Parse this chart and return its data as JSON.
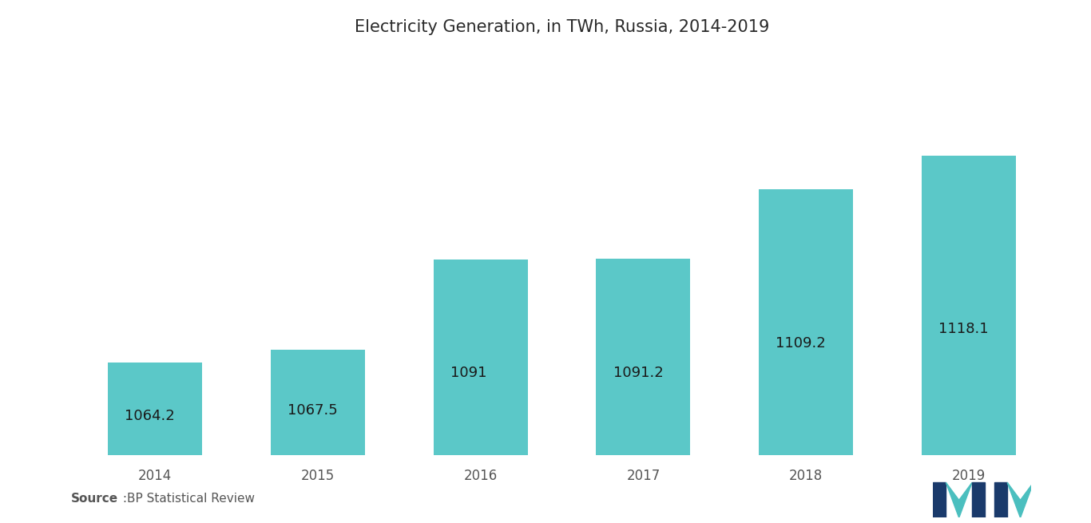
{
  "title": "Electricity Generation, in TWh, Russia, 2014-2019",
  "categories": [
    "2014",
    "2015",
    "2016",
    "2017",
    "2018",
    "2019"
  ],
  "values": [
    1064.2,
    1067.5,
    1091,
    1091.2,
    1109.2,
    1118.1
  ],
  "bar_color": "#5BC8C8",
  "label_color": "#1a1a1a",
  "background_color": "#ffffff",
  "title_fontsize": 15,
  "label_fontsize": 13,
  "tick_fontsize": 12,
  "source_bold": "Source",
  "source_normal": " :BP Statistical Review",
  "ylim_min": 1040,
  "ylim_max": 1145,
  "bar_width": 0.58
}
